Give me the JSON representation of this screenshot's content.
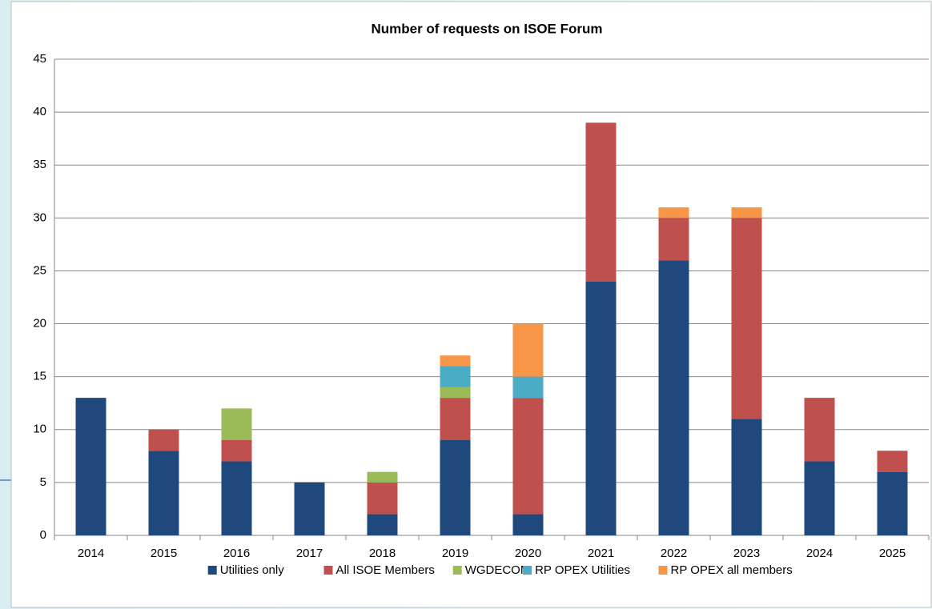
{
  "chart_data": {
    "type": "stacked_bar",
    "title": "Number of requests on ISOE Forum",
    "categories": [
      "2014",
      "2015",
      "2016",
      "2017",
      "2018",
      "2019",
      "2020",
      "2021",
      "2022",
      "2023",
      "2024",
      "2025"
    ],
    "series": [
      {
        "name": "Utilities only",
        "color": "#1f497d",
        "values": [
          13,
          8,
          7,
          5,
          2,
          9,
          2,
          24,
          26,
          11,
          7,
          6
        ]
      },
      {
        "name": "All ISOE Members",
        "color": "#c0504d",
        "values": [
          0,
          2,
          2,
          0,
          3,
          4,
          11,
          15,
          4,
          19,
          6,
          2
        ]
      },
      {
        "name": "WGDECOM",
        "color": "#9bbb59",
        "values": [
          0,
          0,
          3,
          0,
          1,
          1,
          0,
          0,
          0,
          0,
          0,
          0
        ]
      },
      {
        "name": "RP OPEX Utilities",
        "color": "#4bacc6",
        "values": [
          0,
          0,
          0,
          0,
          0,
          2,
          2,
          0,
          0,
          0,
          0,
          0
        ]
      },
      {
        "name": "RP OPEX all members",
        "color": "#f79646",
        "values": [
          0,
          0,
          0,
          0,
          0,
          1,
          5,
          0,
          1,
          1,
          0,
          0
        ]
      }
    ],
    "ylim": [
      0,
      45
    ],
    "yticks": [
      0,
      5,
      10,
      15,
      20,
      25,
      30,
      35,
      40,
      45
    ],
    "grid": true,
    "legend": "bottom"
  }
}
